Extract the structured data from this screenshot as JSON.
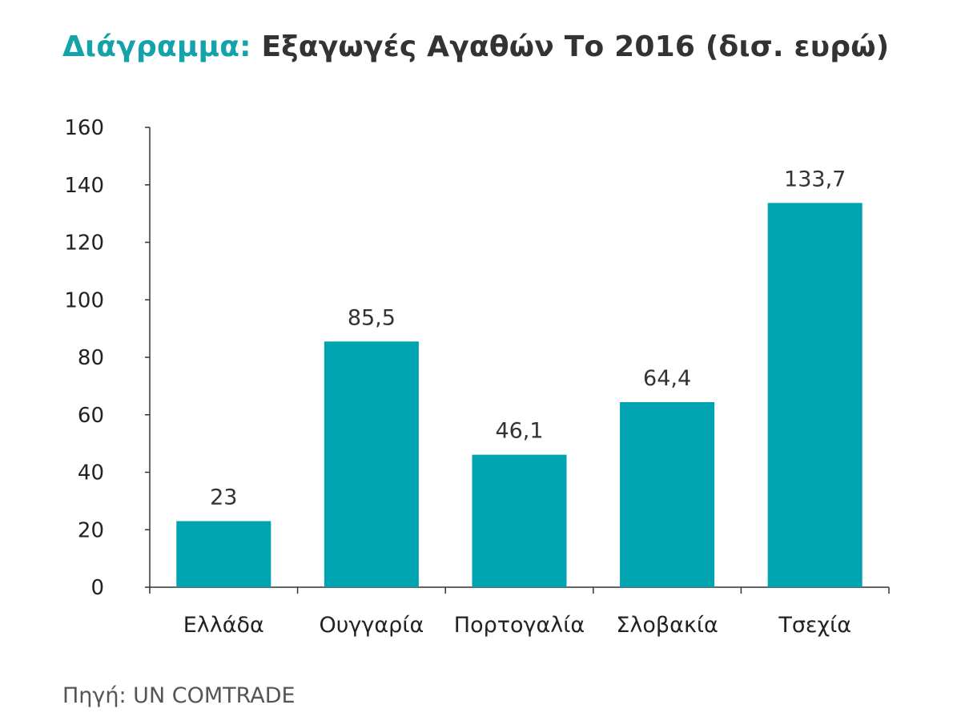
{
  "title": {
    "prefix": "Διάγραμμα:",
    "main": "Εξαγωγές Αγαθών Το 2016 (δισ. ευρώ)"
  },
  "source": "Πηγή: UN COMTRADE",
  "colors": {
    "bar": "#00a4b0",
    "title_accent": "#14a3aa",
    "axis": "#333333"
  },
  "chart_data": {
    "type": "bar",
    "title": "Εξαγωγές Αγαθών Το 2016 (δισ. ευρώ)",
    "categories": [
      "Ελλάδα",
      "Ουγγαρία",
      "Πορτογαλία",
      "Σλοβακία",
      "Τσεχία"
    ],
    "values": [
      23,
      85.5,
      46.1,
      64.4,
      133.7
    ],
    "data_labels": [
      "23",
      "85,5",
      "46,1",
      "64,4",
      "133,7"
    ],
    "yticks": [
      0,
      20,
      40,
      60,
      80,
      100,
      120,
      140,
      160
    ],
    "ylim": [
      0,
      160
    ],
    "xlabel": "",
    "ylabel": "",
    "grid": false,
    "legend": "none"
  }
}
